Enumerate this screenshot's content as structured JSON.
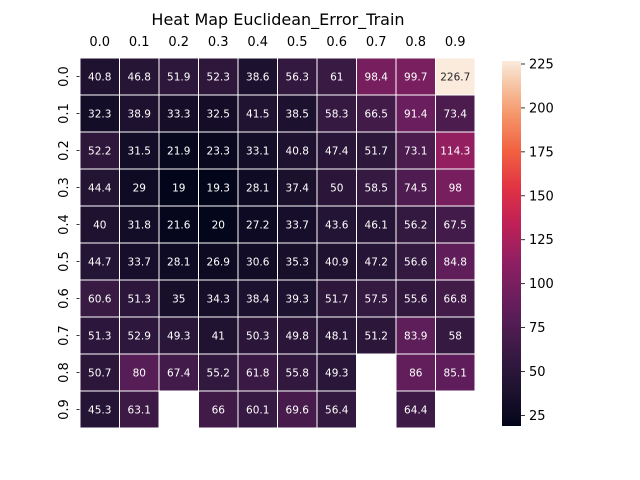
{
  "chart_data": {
    "type": "heatmap",
    "title": "Heat Map Euclidean_Error_Train",
    "x_labels": [
      "0.0",
      "0.1",
      "0.2",
      "0.3",
      "0.4",
      "0.5",
      "0.6",
      "0.7",
      "0.8",
      "0.9"
    ],
    "y_labels": [
      "0.0",
      "0.1",
      "0.2",
      "0.3",
      "0.4",
      "0.5",
      "0.6",
      "0.7",
      "0.8",
      "0.9"
    ],
    "x_axis_position": "top",
    "values": [
      [
        40.8,
        46.8,
        51.9,
        52.3,
        38.6,
        56.3,
        61,
        98.4,
        99.7,
        226.7
      ],
      [
        32.3,
        38.9,
        33.3,
        32.5,
        41.5,
        38.5,
        58.3,
        66.5,
        91.4,
        73.4
      ],
      [
        52.2,
        31.5,
        21.9,
        23.3,
        33.1,
        40.8,
        47.4,
        51.7,
        73.1,
        114.3
      ],
      [
        44.4,
        29,
        19,
        19.3,
        28.1,
        37.4,
        50,
        58.5,
        74.5,
        98
      ],
      [
        40,
        31.8,
        21.6,
        20,
        27.2,
        33.7,
        43.6,
        46.1,
        56.2,
        67.5
      ],
      [
        44.7,
        33.7,
        28.1,
        26.9,
        30.6,
        35.3,
        40.9,
        47.2,
        56.6,
        84.8
      ],
      [
        60.6,
        51.3,
        35,
        34.3,
        38.4,
        39.3,
        51.7,
        57.5,
        55.6,
        66.8
      ],
      [
        51.3,
        52.9,
        49.3,
        41,
        50.3,
        49.8,
        48.1,
        51.2,
        83.9,
        58
      ],
      [
        50.7,
        80,
        67.4,
        55.2,
        61.8,
        55.8,
        49.3,
        null,
        86,
        85.1
      ],
      [
        45.3,
        63.1,
        null,
        66,
        60.1,
        69.6,
        56.4,
        null,
        64.4,
        null
      ]
    ],
    "colormap": "rocket",
    "color_range": [
      19,
      226.7
    ],
    "colorbar_ticks": [
      25,
      50,
      75,
      100,
      125,
      150,
      175,
      200,
      225
    ],
    "grid": false,
    "cell_borders": "white"
  }
}
